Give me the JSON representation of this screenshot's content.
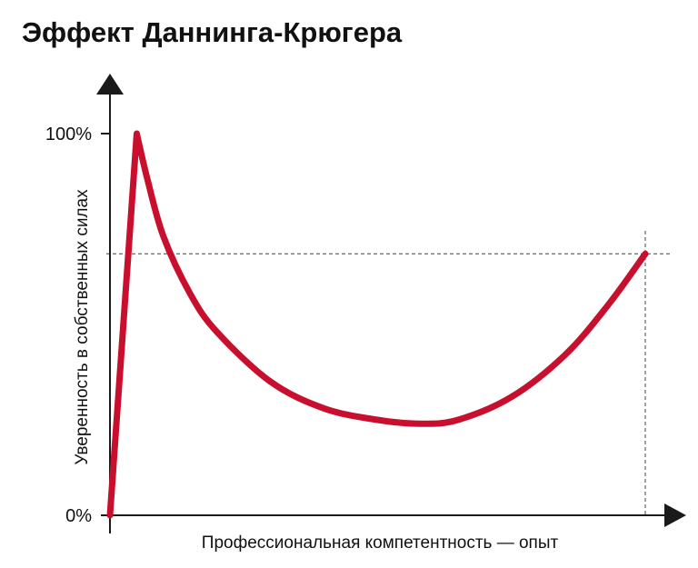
{
  "chart_data": {
    "type": "line",
    "title": "Эффект Даннинга-Крюгера",
    "xlabel": "Профессиональная компетентность — опыт",
    "ylabel": "Уверенность в собственных силах",
    "yticks": [
      {
        "value": 100,
        "label": "100%"
      },
      {
        "value": 0,
        "label": "0%"
      }
    ],
    "xlim": [
      0,
      100
    ],
    "ylim": [
      0,
      100
    ],
    "reference_line_y": 68.5,
    "reference_line_x": 100,
    "grid": false,
    "legend": "none",
    "colors": {
      "curve": "#c8102e",
      "axis": "#1a1a1a",
      "reference": "#444444",
      "text": "#111111"
    },
    "series": [
      {
        "x": [
          0,
          5,
          7,
          10,
          15,
          20,
          30,
          40,
          50,
          58,
          65,
          75,
          85,
          93,
          100
        ],
        "y": [
          0,
          100,
          88,
          73,
          58,
          48,
          35,
          28,
          25,
          24,
          25,
          31,
          42,
          55,
          68.5
        ]
      }
    ]
  }
}
